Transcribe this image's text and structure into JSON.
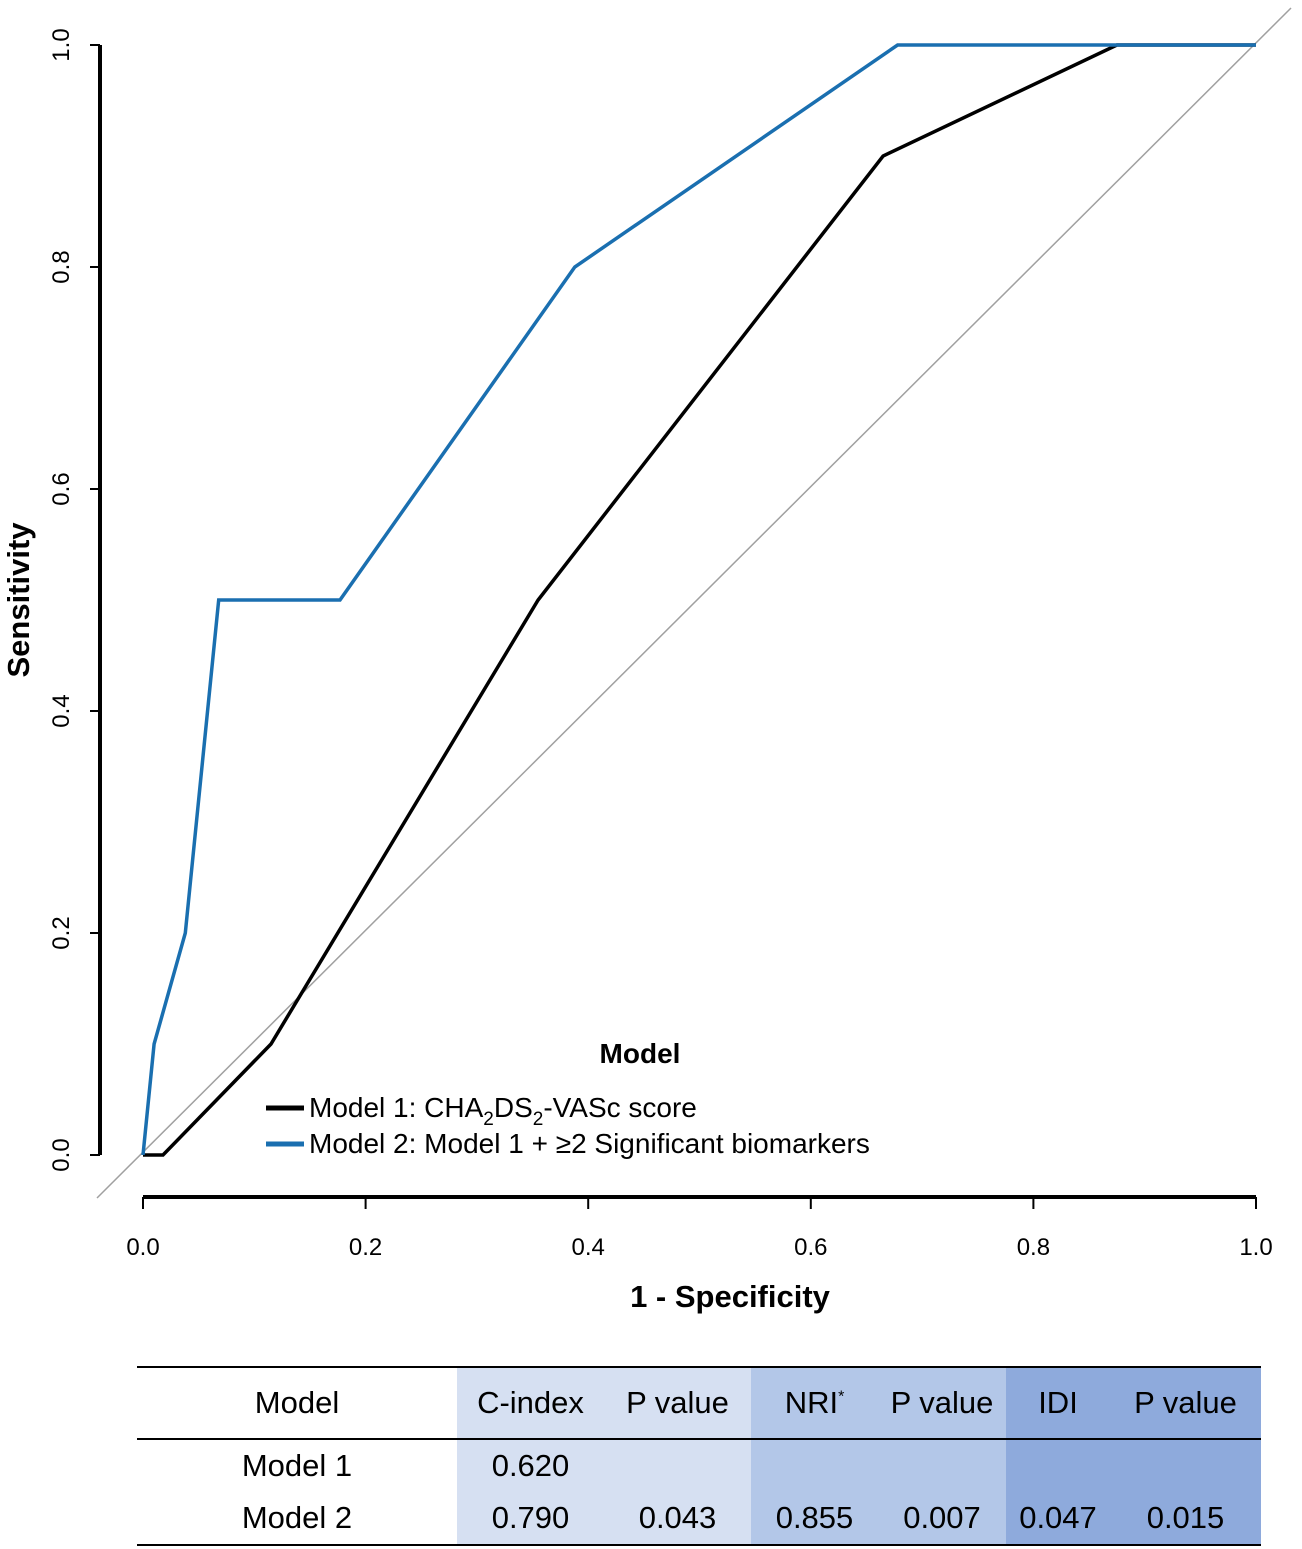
{
  "chart_data": {
    "type": "line",
    "xlabel": "1 - Specificity",
    "ylabel": "Sensitivity",
    "xlim": [
      0,
      1
    ],
    "ylim": [
      0,
      1
    ],
    "x_ticks": [
      "0.0",
      "0.2",
      "0.4",
      "0.6",
      "0.8",
      "1.0"
    ],
    "y_ticks": [
      "0.0",
      "0.2",
      "0.4",
      "0.6",
      "0.8",
      "1.0"
    ],
    "reference_line": "diagonal",
    "legend": {
      "title": "Model",
      "position": "bottom-center",
      "entries": [
        {
          "prefix": "Model 1: CHA",
          "sub1": "2",
          "mid": "DS",
          "sub2": "2",
          "suffix": "-VASc score",
          "color": "#000000"
        },
        {
          "label": "Model 2: Model 1 + ≥2 Significant biomarkers",
          "color": "#1a6fb0"
        }
      ]
    },
    "series": [
      {
        "name": "Model 1: CHA2DS2-VASc score",
        "color": "#000000",
        "x": [
          0.0,
          0.018,
          0.115,
          0.355,
          0.665,
          0.875,
          1.0
        ],
        "y": [
          0.0,
          0.0,
          0.1,
          0.5,
          0.9,
          1.0,
          1.0
        ]
      },
      {
        "name": "Model 2: Model 1 + ≥2 Significant biomarkers",
        "color": "#1a6fb0",
        "x": [
          0.0,
          0.01,
          0.038,
          0.068,
          0.177,
          0.388,
          0.678,
          1.0
        ],
        "y": [
          0.0,
          0.1,
          0.2,
          0.5,
          0.5,
          0.8,
          1.0,
          1.0
        ]
      }
    ]
  },
  "table": {
    "headers": {
      "model": "Model",
      "cindex": "C-index",
      "p1": "P value",
      "nri": "NRI",
      "nri_mark": "*",
      "p2": "P value",
      "idi": "IDI",
      "p3": "P value"
    },
    "rows": [
      {
        "model": "Model 1",
        "cindex": "0.620",
        "p1": "",
        "nri": "",
        "p2": "",
        "idi": "",
        "p3": ""
      },
      {
        "model": "Model 2",
        "cindex": "0.790",
        "p1": "0.043",
        "nri": "0.855",
        "p2": "0.007",
        "idi": "0.047",
        "p3": "0.015"
      }
    ]
  }
}
